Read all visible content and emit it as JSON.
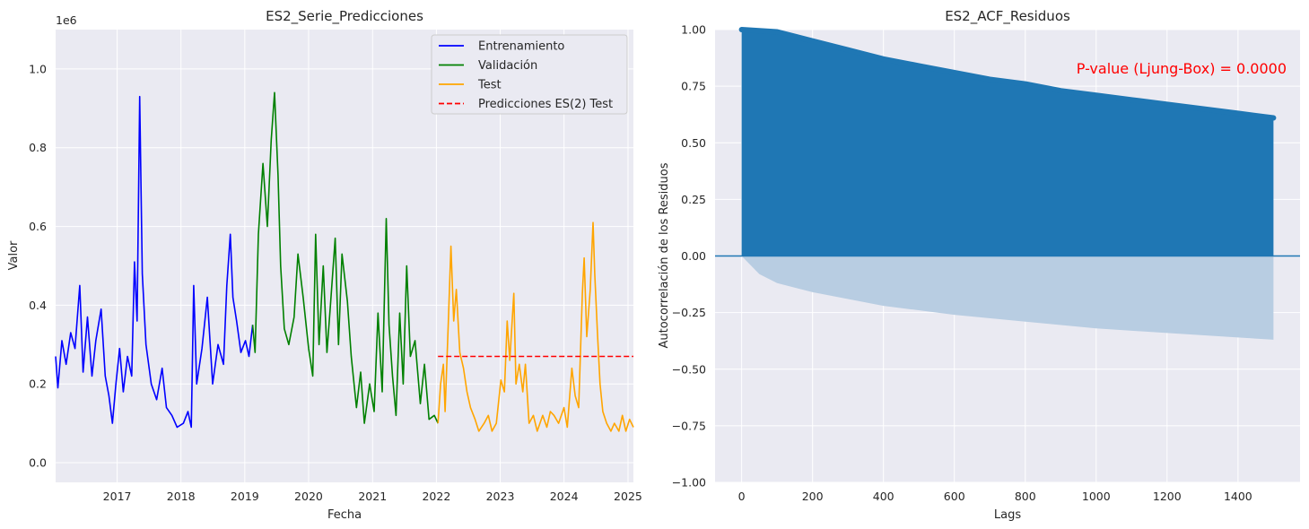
{
  "colors": {
    "background": "#eaeaf2",
    "grid": "#ffffff",
    "train": "#0000ff",
    "validation": "#008000",
    "test": "#ffa500",
    "prediction": "#ff0000",
    "acf": "#1f77b4",
    "acf_band": "#b8cde2",
    "annotation": "#ff0000"
  },
  "chart_data": [
    {
      "type": "line",
      "title": "ES2_Serie_Predicciones",
      "xlabel": "Fecha",
      "ylabel": "Valor",
      "y_offset_label": "1e6",
      "xlim": [
        "2016-01-15",
        "2025-02-01"
      ],
      "ylim": [
        -0.05,
        1.1
      ],
      "x_ticks": [
        "2017",
        "2018",
        "2019",
        "2020",
        "2021",
        "2022",
        "2023",
        "2024",
        "2025"
      ],
      "y_ticks": [
        "0.0",
        "0.2",
        "0.4",
        "0.6",
        "0.8",
        "1.0"
      ],
      "grid": true,
      "legend_position": "top-right",
      "series": [
        {
          "name": "Entrenamiento",
          "color_key": "train",
          "points": [
            [
              "2016-01-15",
              0.27
            ],
            [
              "2016-01-28",
              0.19
            ],
            [
              "2016-02-20",
              0.31
            ],
            [
              "2016-03-15",
              0.25
            ],
            [
              "2016-04-10",
              0.33
            ],
            [
              "2016-05-05",
              0.29
            ],
            [
              "2016-06-01",
              0.45
            ],
            [
              "2016-06-20",
              0.23
            ],
            [
              "2016-07-15",
              0.37
            ],
            [
              "2016-08-10",
              0.22
            ],
            [
              "2016-09-01",
              0.31
            ],
            [
              "2016-10-01",
              0.39
            ],
            [
              "2016-10-25",
              0.22
            ],
            [
              "2016-11-15",
              0.17
            ],
            [
              "2016-12-05",
              0.1
            ],
            [
              "2016-12-25",
              0.2
            ],
            [
              "2017-01-15",
              0.29
            ],
            [
              "2017-02-05",
              0.18
            ],
            [
              "2017-03-01",
              0.27
            ],
            [
              "2017-03-25",
              0.22
            ],
            [
              "2017-04-10",
              0.51
            ],
            [
              "2017-04-25",
              0.36
            ],
            [
              "2017-05-10",
              0.93
            ],
            [
              "2017-05-25",
              0.48
            ],
            [
              "2017-06-15",
              0.3
            ],
            [
              "2017-07-15",
              0.2
            ],
            [
              "2017-08-15",
              0.16
            ],
            [
              "2017-09-15",
              0.24
            ],
            [
              "2017-10-10",
              0.14
            ],
            [
              "2017-11-10",
              0.12
            ],
            [
              "2017-12-10",
              0.09
            ],
            [
              "2018-01-15",
              0.1
            ],
            [
              "2018-02-10",
              0.13
            ],
            [
              "2018-03-01",
              0.09
            ],
            [
              "2018-03-15",
              0.45
            ],
            [
              "2018-04-01",
              0.2
            ],
            [
              "2018-05-01",
              0.29
            ],
            [
              "2018-06-01",
              0.42
            ],
            [
              "2018-07-01",
              0.2
            ],
            [
              "2018-08-01",
              0.3
            ],
            [
              "2018-09-01",
              0.25
            ],
            [
              "2018-09-20",
              0.45
            ],
            [
              "2018-10-10",
              0.58
            ],
            [
              "2018-10-25",
              0.42
            ],
            [
              "2018-11-15",
              0.36
            ],
            [
              "2018-12-10",
              0.28
            ],
            [
              "2019-01-05",
              0.31
            ],
            [
              "2019-01-25",
              0.27
            ],
            [
              "2019-02-15",
              0.35
            ]
          ]
        },
        {
          "name": "Validación",
          "color_key": "validation",
          "points": [
            [
              "2019-02-15",
              0.35
            ],
            [
              "2019-03-01",
              0.28
            ],
            [
              "2019-03-20",
              0.58
            ],
            [
              "2019-04-15",
              0.76
            ],
            [
              "2019-05-10",
              0.6
            ],
            [
              "2019-06-01",
              0.82
            ],
            [
              "2019-06-20",
              0.94
            ],
            [
              "2019-07-10",
              0.73
            ],
            [
              "2019-07-25",
              0.5
            ],
            [
              "2019-08-15",
              0.34
            ],
            [
              "2019-09-10",
              0.3
            ],
            [
              "2019-10-10",
              0.37
            ],
            [
              "2019-11-01",
              0.53
            ],
            [
              "2019-12-01",
              0.42
            ],
            [
              "2020-01-01",
              0.29
            ],
            [
              "2020-01-25",
              0.22
            ],
            [
              "2020-02-10",
              0.58
            ],
            [
              "2020-03-01",
              0.3
            ],
            [
              "2020-03-25",
              0.5
            ],
            [
              "2020-04-15",
              0.28
            ],
            [
              "2020-05-05",
              0.4
            ],
            [
              "2020-06-01",
              0.57
            ],
            [
              "2020-06-20",
              0.3
            ],
            [
              "2020-07-10",
              0.53
            ],
            [
              "2020-08-10",
              0.41
            ],
            [
              "2020-09-01",
              0.27
            ],
            [
              "2020-10-01",
              0.14
            ],
            [
              "2020-10-25",
              0.23
            ],
            [
              "2020-11-15",
              0.1
            ],
            [
              "2020-12-15",
              0.2
            ],
            [
              "2021-01-10",
              0.13
            ],
            [
              "2021-02-01",
              0.38
            ],
            [
              "2021-02-25",
              0.18
            ],
            [
              "2021-03-20",
              0.62
            ],
            [
              "2021-04-05",
              0.35
            ],
            [
              "2021-04-25",
              0.22
            ],
            [
              "2021-05-15",
              0.12
            ],
            [
              "2021-06-05",
              0.38
            ],
            [
              "2021-06-25",
              0.2
            ],
            [
              "2021-07-15",
              0.5
            ],
            [
              "2021-08-05",
              0.27
            ],
            [
              "2021-09-01",
              0.31
            ],
            [
              "2021-10-01",
              0.15
            ],
            [
              "2021-10-25",
              0.25
            ],
            [
              "2021-11-20",
              0.11
            ],
            [
              "2021-12-20",
              0.12
            ],
            [
              "2022-01-10",
              0.1
            ]
          ]
        },
        {
          "name": "Test",
          "color_key": "test",
          "points": [
            [
              "2022-01-10",
              0.1
            ],
            [
              "2022-01-25",
              0.2
            ],
            [
              "2022-02-10",
              0.25
            ],
            [
              "2022-02-20",
              0.13
            ],
            [
              "2022-03-10",
              0.35
            ],
            [
              "2022-03-25",
              0.55
            ],
            [
              "2022-04-10",
              0.36
            ],
            [
              "2022-04-25",
              0.44
            ],
            [
              "2022-05-15",
              0.28
            ],
            [
              "2022-06-05",
              0.24
            ],
            [
              "2022-06-25",
              0.18
            ],
            [
              "2022-07-15",
              0.14
            ],
            [
              "2022-08-10",
              0.11
            ],
            [
              "2022-09-01",
              0.08
            ],
            [
              "2022-10-01",
              0.1
            ],
            [
              "2022-10-25",
              0.12
            ],
            [
              "2022-11-15",
              0.08
            ],
            [
              "2022-12-10",
              0.1
            ],
            [
              "2023-01-05",
              0.21
            ],
            [
              "2023-01-25",
              0.18
            ],
            [
              "2023-02-10",
              0.36
            ],
            [
              "2023-02-25",
              0.26
            ],
            [
              "2023-03-20",
              0.43
            ],
            [
              "2023-04-01",
              0.2
            ],
            [
              "2023-04-20",
              0.25
            ],
            [
              "2023-05-10",
              0.18
            ],
            [
              "2023-05-25",
              0.25
            ],
            [
              "2023-06-15",
              0.1
            ],
            [
              "2023-07-10",
              0.12
            ],
            [
              "2023-08-01",
              0.08
            ],
            [
              "2023-09-01",
              0.12
            ],
            [
              "2023-09-25",
              0.09
            ],
            [
              "2023-10-15",
              0.13
            ],
            [
              "2023-11-05",
              0.12
            ],
            [
              "2023-12-01",
              0.1
            ],
            [
              "2024-01-01",
              0.14
            ],
            [
              "2024-01-20",
              0.09
            ],
            [
              "2024-02-15",
              0.24
            ],
            [
              "2024-03-05",
              0.17
            ],
            [
              "2024-03-25",
              0.14
            ],
            [
              "2024-04-15",
              0.43
            ],
            [
              "2024-04-25",
              0.52
            ],
            [
              "2024-05-10",
              0.32
            ],
            [
              "2024-05-30",
              0.44
            ],
            [
              "2024-06-15",
              0.61
            ],
            [
              "2024-06-25",
              0.48
            ],
            [
              "2024-07-10",
              0.33
            ],
            [
              "2024-07-25",
              0.2
            ],
            [
              "2024-08-10",
              0.13
            ],
            [
              "2024-09-01",
              0.1
            ],
            [
              "2024-09-25",
              0.08
            ],
            [
              "2024-10-15",
              0.1
            ],
            [
              "2024-11-10",
              0.08
            ],
            [
              "2024-11-30",
              0.12
            ],
            [
              "2024-12-20",
              0.08
            ],
            [
              "2025-01-10",
              0.11
            ],
            [
              "2025-02-01",
              0.09
            ]
          ]
        },
        {
          "name": "Predicciones ES(2) Test",
          "color_key": "prediction",
          "dashed": true,
          "points": [
            [
              "2022-01-10",
              0.27
            ],
            [
              "2025-02-01",
              0.27
            ]
          ]
        }
      ]
    },
    {
      "type": "area",
      "title": "ES2_ACF_Residuos",
      "xlabel": "Lags",
      "ylabel": "Autocorrelación de los Residuos",
      "xlim": [
        -75,
        1575
      ],
      "ylim": [
        -1.0,
        1.0
      ],
      "x_ticks": [
        "0",
        "200",
        "400",
        "600",
        "800",
        "1000",
        "1200",
        "1400"
      ],
      "y_ticks": [
        "−1.00",
        "−0.75",
        "−0.50",
        "−0.25",
        "0.00",
        "0.25",
        "0.50",
        "0.75",
        "1.00"
      ],
      "grid": true,
      "annotation": "P-value (Ljung-Box) = 0.0000",
      "acf_max_lag": 1500,
      "acf_points": [
        [
          0,
          1.0
        ],
        [
          100,
          0.99
        ],
        [
          200,
          0.95
        ],
        [
          300,
          0.91
        ],
        [
          400,
          0.87
        ],
        [
          500,
          0.84
        ],
        [
          600,
          0.81
        ],
        [
          700,
          0.78
        ],
        [
          800,
          0.76
        ],
        [
          900,
          0.73
        ],
        [
          1000,
          0.71
        ],
        [
          1100,
          0.69
        ],
        [
          1200,
          0.67
        ],
        [
          1300,
          0.65
        ],
        [
          1400,
          0.63
        ],
        [
          1500,
          0.61
        ]
      ],
      "confidence_lower": [
        [
          0,
          0.0
        ],
        [
          50,
          -0.08
        ],
        [
          100,
          -0.12
        ],
        [
          200,
          -0.16
        ],
        [
          300,
          -0.19
        ],
        [
          400,
          -0.22
        ],
        [
          600,
          -0.26
        ],
        [
          800,
          -0.29
        ],
        [
          1000,
          -0.32
        ],
        [
          1200,
          -0.34
        ],
        [
          1400,
          -0.36
        ],
        [
          1500,
          -0.37
        ]
      ]
    }
  ]
}
